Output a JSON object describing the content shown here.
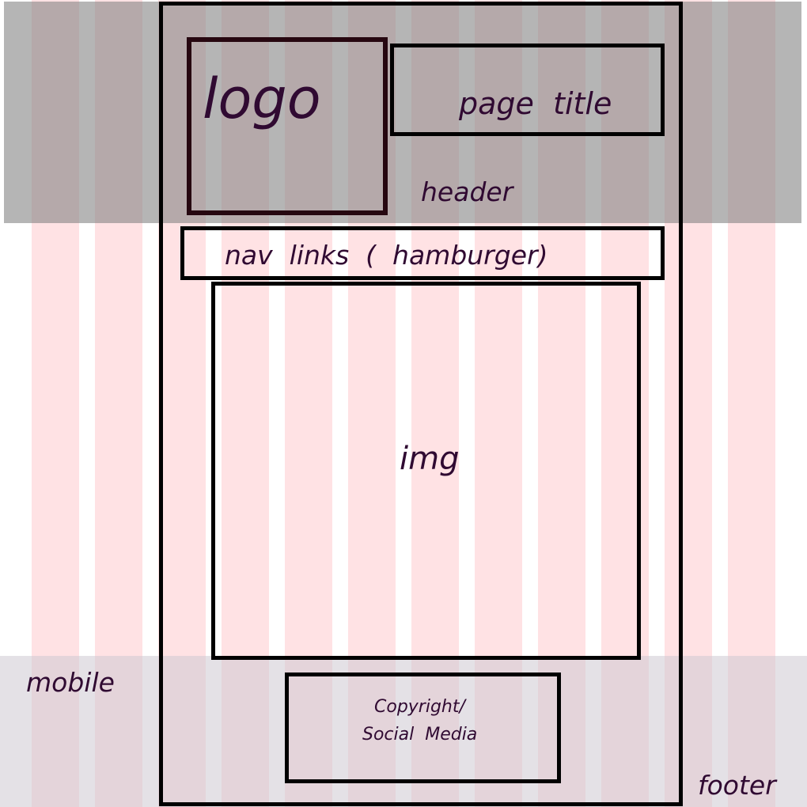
{
  "diagram": {
    "logo_label": "logo",
    "page_title_label": "page  title",
    "header_label": "header",
    "nav_label": "nav  links  (  hamburger)",
    "img_label": "img",
    "mobile_label": "mobile",
    "footer_box_line1": "Copyright/",
    "footer_box_line2": "Social  Media",
    "footer_label": "footer"
  },
  "colors": {
    "grid_column": "#ffe2e4",
    "header_band": "#8c8c8c",
    "footer_band": "#cdc8d2",
    "box_border": "#000000",
    "text": "#300a32"
  }
}
